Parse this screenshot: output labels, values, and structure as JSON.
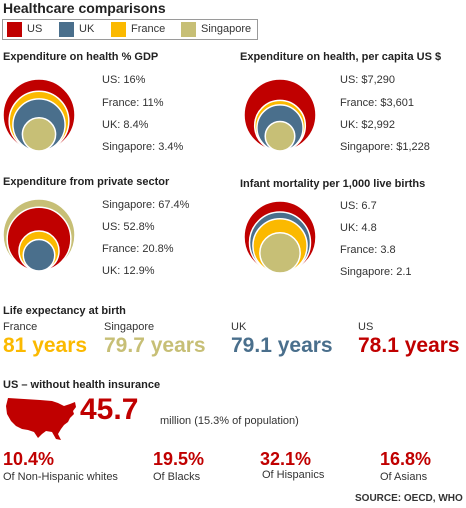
{
  "title": "Healthcare comparisons",
  "colors": {
    "US": "#c00000",
    "UK": "#4a6f8c",
    "France": "#fbb900",
    "Singapore": "#c7bf76"
  },
  "legend": [
    {
      "label": "US",
      "color": "#c00000"
    },
    {
      "label": "UK",
      "color": "#4a6f8c"
    },
    {
      "label": "France",
      "color": "#fbb900"
    },
    {
      "label": "Singapore",
      "color": "#c7bf76"
    }
  ],
  "chart_data": [
    {
      "type": "bubble",
      "title": "Expenditure on health % GDP",
      "labels": [
        "US: 16%",
        "France: 11%",
        "UK: 8.4%",
        "Singapore: 3.4%"
      ],
      "series": [
        {
          "name": "US",
          "value": 16
        },
        {
          "name": "France",
          "value": 11
        },
        {
          "name": "UK",
          "value": 8.4
        },
        {
          "name": "Singapore",
          "value": 3.4
        }
      ]
    },
    {
      "type": "bubble",
      "title": "Expenditure on health, per capita US $",
      "labels": [
        "US: $7,290",
        "France: $3,601",
        "UK: $2,992",
        "Singapore: $1,228"
      ],
      "series": [
        {
          "name": "US",
          "value": 7290
        },
        {
          "name": "France",
          "value": 3601
        },
        {
          "name": "UK",
          "value": 2992
        },
        {
          "name": "Singapore",
          "value": 1228
        }
      ]
    },
    {
      "type": "bubble",
      "title": "Expenditure from private sector",
      "labels": [
        "Singapore: 67.4%",
        "US: 52.8%",
        "France: 20.8%",
        "UK: 12.9%"
      ],
      "series": [
        {
          "name": "Singapore",
          "value": 67.4
        },
        {
          "name": "US",
          "value": 52.8
        },
        {
          "name": "France",
          "value": 20.8
        },
        {
          "name": "UK",
          "value": 12.9
        }
      ]
    },
    {
      "type": "bubble",
      "title": "Infant mortality per 1,000 live births",
      "labels": [
        "US: 6.7",
        "UK: 4.8",
        "France: 3.8",
        "Singapore: 2.1"
      ],
      "series": [
        {
          "name": "US",
          "value": 6.7
        },
        {
          "name": "UK",
          "value": 4.8
        },
        {
          "name": "France",
          "value": 3.8
        },
        {
          "name": "Singapore",
          "value": 2.1
        }
      ]
    }
  ],
  "life_expectancy": {
    "title": "Life expectancy at birth",
    "items": [
      {
        "country": "France",
        "value": "81 years"
      },
      {
        "country": "Singapore",
        "value": "79.7 years"
      },
      {
        "country": "UK",
        "value": "79.1 years"
      },
      {
        "country": "US",
        "value": "78.1 years"
      }
    ]
  },
  "insurance": {
    "title": "US – without health insurance",
    "number": "45.7",
    "unit": "million (15.3% of population)",
    "groups": [
      {
        "value": "10.4%",
        "label": "Of Non-Hispanic whites"
      },
      {
        "value": "19.5%",
        "label": "Of Blacks"
      },
      {
        "value": "32.1%",
        "label": "Of Hispanics"
      },
      {
        "value": "16.8%",
        "label": "Of Asians"
      }
    ]
  },
  "source": "SOURCE: OECD, WHO"
}
